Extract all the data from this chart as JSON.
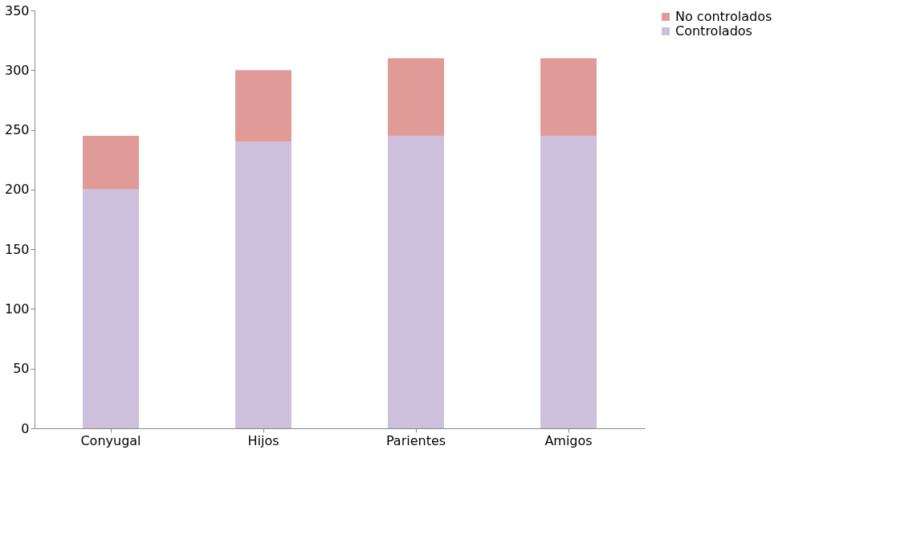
{
  "chart_data": {
    "type": "bar",
    "stacked": true,
    "categories": [
      "Conyugal",
      "Hijos",
      "Parientes",
      "Amigos"
    ],
    "series": [
      {
        "name": "Controlados",
        "color": "#cdc0dc",
        "values": [
          200,
          240,
          245,
          245
        ]
      },
      {
        "name": "No controlados",
        "color": "#e09a98",
        "values": [
          45,
          60,
          65,
          65
        ]
      }
    ],
    "ylim": [
      0,
      350
    ],
    "yticks": [
      0,
      50,
      100,
      150,
      200,
      250,
      300,
      350
    ],
    "grid": false,
    "legend": "right"
  }
}
